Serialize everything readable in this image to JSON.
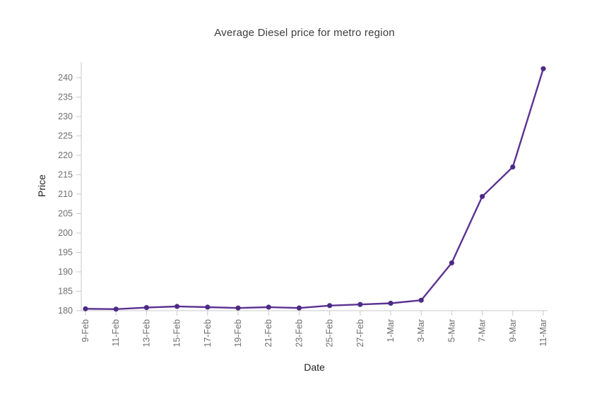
{
  "chart_data": {
    "type": "line",
    "title": "Average Diesel price for metro region",
    "xlabel": "Date",
    "ylabel": "Price",
    "categories": [
      "9-Feb",
      "11-Feb",
      "13-Feb",
      "15-Feb",
      "17-Feb",
      "19-Feb",
      "21-Feb",
      "23-Feb",
      "25-Feb",
      "27-Feb",
      "1-Mar",
      "3-Mar",
      "5-Mar",
      "7-Mar",
      "9-Mar",
      "11-Mar"
    ],
    "values": [
      180.5,
      180.4,
      180.8,
      181.1,
      180.9,
      180.7,
      180.9,
      180.7,
      181.3,
      181.6,
      181.9,
      182.7,
      192.3,
      209.4,
      217.0,
      242.3
    ],
    "ylim": [
      180,
      244
    ],
    "yticks": [
      180,
      185,
      190,
      195,
      200,
      205,
      210,
      215,
      220,
      225,
      230,
      235,
      240
    ],
    "grid": false,
    "legend_position": "none",
    "marker": "circle",
    "colors": {
      "line": "#5b3292",
      "point": "#4d2b85",
      "axis": "#c9c9c9",
      "tick_label": "#6f6f6f",
      "title": "#3d3d3d",
      "axis_title": "#222222"
    }
  }
}
